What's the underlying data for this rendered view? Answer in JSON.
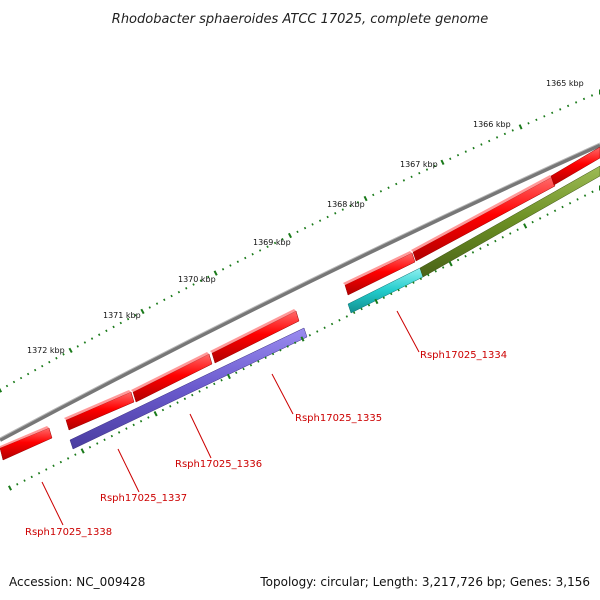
{
  "title": "Rhodobacter sphaeroides ATCC 17025, complete genome",
  "scale_labels": [
    "1365 kbp",
    "1366 kbp",
    "1367 kbp",
    "1368 kbp",
    "1369 kbp",
    "1370 kbp",
    "1371 kbp",
    "1372 kbp"
  ],
  "genes": [
    {
      "locus": "Rsph17025_1334"
    },
    {
      "locus": "Rsph17025_1335"
    },
    {
      "locus": "Rsph17025_1336"
    },
    {
      "locus": "Rsph17025_1337"
    },
    {
      "locus": "Rsph17025_1338"
    }
  ],
  "footer": {
    "accession": "Accession: NC_009428",
    "stats": "Topology: circular; Length: 3,217,726 bp; Genes: 3,156"
  },
  "colors": {
    "backbone": "#808080",
    "forward_gene": "#ff0000",
    "label": "#cc0000",
    "tick": "#1a7a1a",
    "cyan_feature": "#22cccc",
    "olive_feature": "#6b8e23",
    "purple_feature": "#6a5acd"
  }
}
